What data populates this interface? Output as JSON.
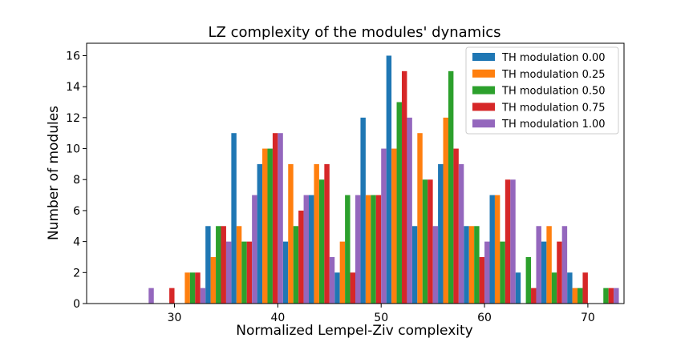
{
  "chart_data": {
    "type": "bar",
    "title": "LZ complexity of the modules' dynamics",
    "xlabel": "Normalized Lempel-Ziv complexity",
    "ylabel": "Number of modules",
    "xlim": [
      21.5,
      73.5
    ],
    "ylim": [
      0,
      16.8
    ],
    "xticks": [
      30,
      40,
      50,
      60,
      70
    ],
    "yticks": [
      0,
      2,
      4,
      6,
      8,
      10,
      12,
      14,
      16
    ],
    "grid": false,
    "legend_position": "top-right",
    "bin_width": 2.5,
    "bins": [
      25.5,
      28.0,
      30.5,
      33.0,
      35.5,
      38.0,
      40.5,
      43.0,
      45.5,
      48.0,
      50.5,
      53.0,
      55.5,
      58.0,
      60.5,
      63.0,
      65.5,
      68.0,
      70.5
    ],
    "series": [
      {
        "name": "TH modulation 0.00",
        "color": "#1f77b4",
        "values": [
          0,
          0,
          0,
          5,
          11,
          9,
          4,
          7,
          2,
          12,
          16,
          5,
          9,
          5,
          7,
          2,
          4,
          2,
          0
        ]
      },
      {
        "name": "TH modulation 0.25",
        "color": "#ff7f0e",
        "values": [
          0,
          0,
          2,
          3,
          5,
          10,
          9,
          9,
          4,
          7,
          10,
          11,
          12,
          5,
          7,
          0,
          5,
          1,
          0
        ]
      },
      {
        "name": "TH modulation 0.50",
        "color": "#2ca02c",
        "values": [
          0,
          0,
          2,
          5,
          4,
          10,
          5,
          8,
          7,
          7,
          13,
          8,
          15,
          5,
          4,
          3,
          2,
          1,
          1
        ]
      },
      {
        "name": "TH modulation 0.75",
        "color": "#d62728",
        "values": [
          0,
          1,
          2,
          5,
          4,
          11,
          6,
          9,
          2,
          7,
          15,
          8,
          10,
          3,
          8,
          1,
          4,
          2,
          1
        ]
      },
      {
        "name": "TH modulation 1.00",
        "color": "#9467bd",
        "values": [
          1,
          0,
          1,
          4,
          7,
          11,
          7,
          3,
          7,
          10,
          12,
          5,
          9,
          4,
          8,
          5,
          5,
          0,
          1
        ]
      }
    ]
  }
}
